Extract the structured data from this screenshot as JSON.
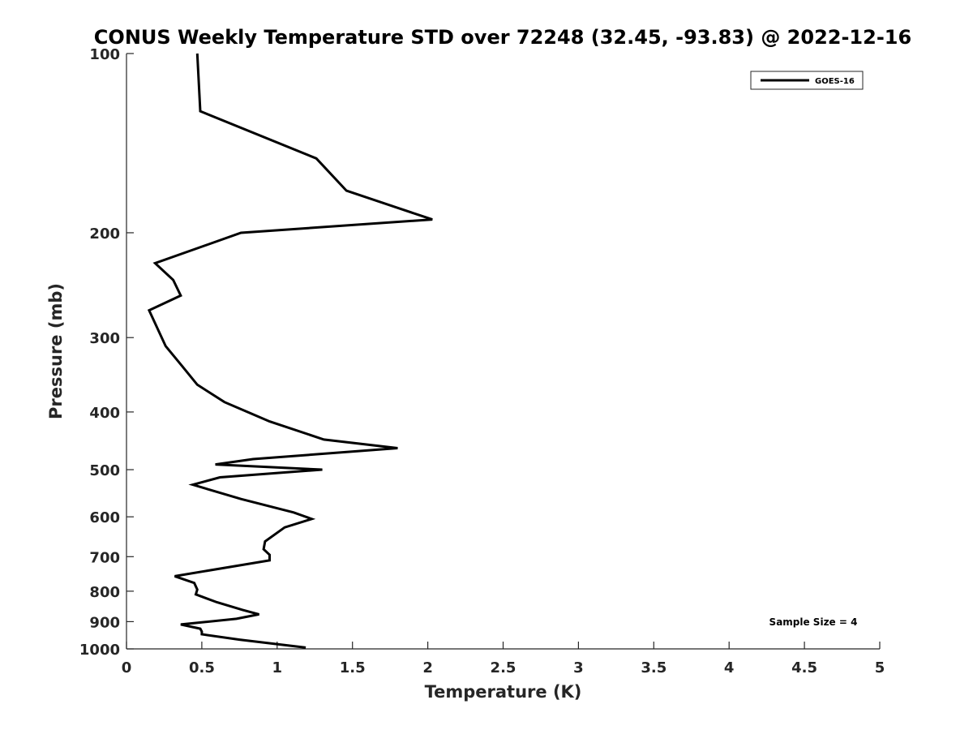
{
  "chart_data": {
    "type": "line",
    "title": "CONUS Weekly Temperature STD over 72248 (32.45, -93.83) @ 2022-12-16",
    "xlabel": "Temperature (K)",
    "ylabel": "Pressure (mb)",
    "xlim": [
      0,
      5
    ],
    "ylim": [
      100,
      1000
    ],
    "y_scale": "log",
    "y_reversed": true,
    "x_ticks": [
      "0",
      "0.5",
      "1",
      "1.5",
      "2",
      "2.5",
      "3",
      "3.5",
      "4",
      "4.5",
      "5"
    ],
    "y_ticks": [
      "100",
      "200",
      "300",
      "400",
      "500",
      "600",
      "700",
      "800",
      "900",
      "1000"
    ],
    "grid": false,
    "legend": {
      "placement": "top-right",
      "entries": [
        "GOES-16"
      ]
    },
    "annotation": "Sample Size = 4",
    "series": [
      {
        "name": "GOES-16",
        "color": "#000000",
        "x": [
          0.47,
          0.49,
          1.26,
          1.46,
          2.03,
          0.76,
          0.19,
          0.31,
          0.36,
          0.15,
          0.26,
          0.37,
          0.47,
          0.65,
          0.95,
          1.31,
          1.8,
          0.84,
          0.59,
          1.3,
          0.62,
          0.44,
          0.76,
          1.11,
          1.23,
          1.05,
          0.92,
          0.91,
          0.95,
          0.95,
          0.32,
          0.45,
          0.47,
          0.46,
          0.6,
          0.77,
          0.88,
          0.73,
          0.36,
          0.49,
          0.5,
          0.5,
          0.75,
          1.19
        ],
        "y": [
          100,
          125,
          150,
          170,
          190,
          200,
          225,
          240,
          255,
          270,
          310,
          335,
          360,
          385,
          415,
          445,
          460,
          480,
          490,
          500,
          515,
          530,
          560,
          590,
          605,
          625,
          660,
          680,
          695,
          710,
          755,
          775,
          795,
          810,
          835,
          860,
          875,
          890,
          910,
          925,
          935,
          945,
          965,
          995
        ]
      }
    ]
  }
}
